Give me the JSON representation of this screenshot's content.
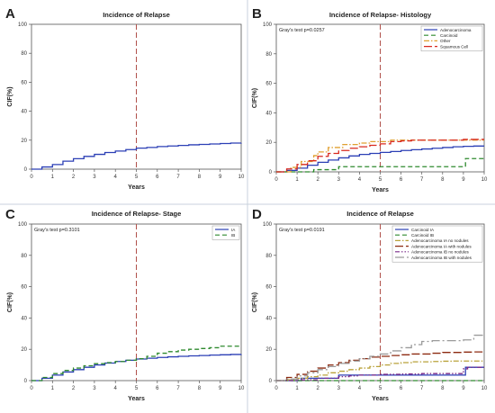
{
  "panel_letters": [
    "A",
    "B",
    "C",
    "D"
  ],
  "colors": {
    "blue": "#2b3fb5",
    "green": "#2e8a2e",
    "orange": "#e0a030",
    "red": "#d8281e",
    "darkred": "#8c2a10",
    "purple": "#7a2a8a",
    "gray": "#9a9a9a",
    "olive": "#b9a23a",
    "refline": "#b0504a",
    "divider": "#c8d2dc"
  },
  "chart_data": [
    {
      "type": "line",
      "panel": "A",
      "title": "Incidence of Relapse",
      "annotation": "",
      "xlabel": "Years",
      "ylabel": "CIF(%)",
      "xlim": [
        0,
        10
      ],
      "ylim": [
        0,
        100
      ],
      "xticks": [
        "0",
        "1",
        "2",
        "3",
        "4",
        "5",
        "6",
        "7",
        "8",
        "9",
        "10"
      ],
      "yticks": [
        "0",
        "20",
        "40",
        "60",
        "80",
        "100"
      ],
      "reference_line_x": 5,
      "grid": false,
      "legend": [],
      "series": [
        {
          "color_key": "blue",
          "dash": "solid",
          "x": [
            0,
            0.5,
            1,
            1.5,
            2,
            2.5,
            3,
            3.5,
            4,
            4.5,
            5,
            5.5,
            6,
            6.5,
            7,
            7.5,
            8,
            8.5,
            9,
            9.5,
            10
          ],
          "y": [
            0,
            1.5,
            3.2,
            5.5,
            7.2,
            8.8,
            10.2,
            11.5,
            12.5,
            13.5,
            14.5,
            15.0,
            15.6,
            16.0,
            16.4,
            16.8,
            17.1,
            17.4,
            17.7,
            18.0,
            18.1
          ]
        }
      ]
    },
    {
      "type": "line",
      "panel": "B",
      "title": "Incidence of Relapse- Histology",
      "annotation": "Gray's test p=0.0257",
      "xlabel": "Years",
      "ylabel": "CIF(%)",
      "xlim": [
        0,
        10
      ],
      "ylim": [
        0,
        100
      ],
      "xticks": [
        "0",
        "1",
        "2",
        "3",
        "4",
        "5",
        "6",
        "7",
        "8",
        "9",
        "10"
      ],
      "yticks": [
        "0",
        "20",
        "40",
        "60",
        "80",
        "100"
      ],
      "reference_line_x": 5,
      "grid": false,
      "legend": [
        "Adenocarcinoma",
        "Carcinoid",
        "Other",
        "Squamous Cell"
      ],
      "legend_colors": [
        "blue",
        "green",
        "orange",
        "red"
      ],
      "legend_dashes": [
        "solid",
        "dash",
        "dashdot",
        "longdash"
      ],
      "series": [
        {
          "name": "Adenocarcinoma",
          "color_key": "blue",
          "dash": "solid",
          "x": [
            0,
            0.5,
            1,
            1.5,
            2,
            2.5,
            3,
            3.5,
            4,
            4.5,
            5,
            5.5,
            6,
            6.5,
            7,
            7.5,
            8,
            8.5,
            9,
            9.5,
            10
          ],
          "y": [
            0,
            1,
            2.5,
            4.5,
            6.5,
            8,
            9.5,
            10.8,
            11.8,
            12.5,
            13.2,
            13.8,
            14.5,
            15,
            15.5,
            16,
            16.5,
            17,
            17.3,
            17.5,
            17.5
          ]
        },
        {
          "name": "Carcinoid",
          "color_key": "green",
          "dash": "dash",
          "x": [
            0,
            1,
            1.8,
            2.8,
            3.0,
            9.0,
            9.1,
            10
          ],
          "y": [
            0,
            0,
            1.5,
            1.5,
            3.5,
            3.5,
            9,
            9
          ]
        },
        {
          "name": "Other",
          "color_key": "orange",
          "dash": "dashdot",
          "x": [
            0,
            0.7,
            1.2,
            1.8,
            2.0,
            2.5,
            3.2,
            4.0,
            4.5,
            5.5,
            10
          ],
          "y": [
            0,
            3,
            7,
            11,
            13.5,
            16.5,
            18.5,
            19.5,
            20.5,
            21.5,
            21.5
          ]
        },
        {
          "name": "Squamous Cell",
          "color_key": "red",
          "dash": "longdash",
          "x": [
            0,
            0.5,
            1,
            1.5,
            2,
            2.5,
            3,
            3.5,
            4,
            4.5,
            5,
            5.5,
            6,
            6.5,
            7,
            7.5,
            8,
            8.5,
            9,
            9.5,
            10
          ],
          "y": [
            0,
            2,
            5,
            7.5,
            10.5,
            12.5,
            14.5,
            16,
            17,
            18,
            19,
            20.5,
            21,
            21.5,
            21.5,
            21.5,
            21.5,
            21.5,
            22,
            22,
            22
          ]
        }
      ]
    },
    {
      "type": "line",
      "panel": "C",
      "title": "Incidence of Relapse- Stage",
      "annotation": "Gray's test p=0.3101",
      "xlabel": "Years",
      "ylabel": "CIF(%)",
      "xlim": [
        0,
        10
      ],
      "ylim": [
        0,
        100
      ],
      "xticks": [
        "0",
        "1",
        "2",
        "3",
        "4",
        "5",
        "6",
        "7",
        "8",
        "9",
        "10"
      ],
      "yticks": [
        "0",
        "20",
        "40",
        "60",
        "80",
        "100"
      ],
      "reference_line_x": 5,
      "grid": false,
      "legend": [
        "IA",
        "IB"
      ],
      "legend_colors": [
        "blue",
        "green"
      ],
      "legend_dashes": [
        "solid",
        "dash"
      ],
      "series": [
        {
          "name": "IA",
          "color_key": "blue",
          "dash": "solid",
          "x": [
            0,
            0.5,
            1,
            1.5,
            2,
            2.5,
            3,
            3.5,
            4,
            4.5,
            5,
            5.5,
            6,
            6.5,
            7,
            7.5,
            8,
            8.5,
            9,
            9.5,
            10
          ],
          "y": [
            0,
            1.5,
            3.5,
            5.5,
            7,
            8.5,
            10,
            11.2,
            12.2,
            13,
            13.8,
            14.3,
            14.8,
            15.2,
            15.5,
            15.8,
            16,
            16.3,
            16.5,
            16.7,
            16.8
          ]
        },
        {
          "name": "IB",
          "color_key": "green",
          "dash": "dash",
          "x": [
            0,
            0.5,
            1,
            1.5,
            2,
            2.5,
            3,
            3.5,
            4,
            4.5,
            5,
            5.5,
            6,
            6.5,
            7,
            7.5,
            8,
            8.5,
            9,
            9.5,
            10
          ],
          "y": [
            0,
            2,
            4.5,
            6.5,
            8,
            9.5,
            10.8,
            11.5,
            12.2,
            13,
            14,
            15.5,
            17.5,
            18.5,
            19.5,
            20,
            20.5,
            21,
            22,
            22,
            22
          ]
        }
      ]
    },
    {
      "type": "line",
      "panel": "D",
      "title": "Incidence of Relapse",
      "annotation": "Gray's test p=0.0191",
      "xlabel": "Years",
      "ylabel": "CIF(%)",
      "xlim": [
        0,
        10
      ],
      "ylim": [
        0,
        100
      ],
      "xticks": [
        "0",
        "1",
        "2",
        "3",
        "4",
        "5",
        "6",
        "7",
        "8",
        "9",
        "10"
      ],
      "yticks": [
        "0",
        "20",
        "40",
        "60",
        "80",
        "100"
      ],
      "reference_line_x": 5,
      "grid": false,
      "legend": [
        "Carcinoid IA",
        "Carcinoid IB",
        "Adenocarcinoma IA no nodules",
        "Adenocarcinoma IA with nodules",
        "Adenocarcinoma IB no nodules",
        "Adenocarcinoma IB with nodules"
      ],
      "legend_colors": [
        "blue",
        "green",
        "olive",
        "darkred",
        "purple",
        "gray"
      ],
      "legend_dashes": [
        "solid",
        "dash",
        "dashdot",
        "longdash",
        "dashdotdot",
        "longdashdot"
      ],
      "series": [
        {
          "name": "Carcinoid IA",
          "color_key": "blue",
          "dash": "solid",
          "x": [
            0,
            0.8,
            1.2,
            2.8,
            3.0,
            9.0,
            9.1,
            10
          ],
          "y": [
            0,
            0,
            1.5,
            1.5,
            3.5,
            3.5,
            8.5,
            8.5
          ]
        },
        {
          "name": "Carcinoid IB",
          "color_key": "green",
          "dash": "dash",
          "x": [
            0,
            10
          ],
          "y": [
            0,
            0
          ]
        },
        {
          "name": "Adenocarcinoma IA no nodules",
          "color_key": "olive",
          "dash": "dashdot",
          "x": [
            0,
            0.5,
            1,
            1.5,
            2,
            2.5,
            3,
            3.5,
            4,
            4.5,
            5,
            5.5,
            6,
            6.5,
            7,
            7.5,
            8,
            8.5,
            9,
            9.5,
            10
          ],
          "y": [
            0,
            0.5,
            1.5,
            2.5,
            3.5,
            5,
            6,
            7,
            8,
            9,
            10,
            11,
            11.5,
            12,
            12,
            12.2,
            12.4,
            12.5,
            12.5,
            12.5,
            12.5
          ]
        },
        {
          "name": "Adenocarcinoma IA with nodules",
          "color_key": "darkred",
          "dash": "longdash",
          "x": [
            0,
            0.5,
            1,
            1.5,
            2,
            2.5,
            3,
            3.5,
            4,
            4.5,
            5,
            5.5,
            6,
            6.5,
            7,
            7.5,
            8,
            8.5,
            9,
            9.5,
            10
          ],
          "y": [
            0,
            2,
            4,
            6,
            8,
            10,
            11.5,
            13,
            14,
            15,
            15.5,
            16,
            16.5,
            17,
            17,
            17.5,
            18,
            18,
            18.2,
            18.3,
            18.3
          ]
        },
        {
          "name": "Adenocarcinoma IB no nodules",
          "color_key": "purple",
          "dash": "dashdotdot",
          "x": [
            0,
            1,
            2,
            3,
            3.5,
            4,
            5,
            6,
            7,
            8,
            8.8,
            9.0,
            9.2,
            10
          ],
          "y": [
            0,
            0.5,
            1.5,
            2.5,
            3.0,
            3.5,
            4.0,
            4.2,
            4.5,
            4.5,
            4.5,
            7.5,
            8.5,
            8.5
          ]
        },
        {
          "name": "Adenocarcinoma IB with nodules",
          "color_key": "gray",
          "dash": "longdashdot",
          "x": [
            0,
            0.5,
            1,
            1.5,
            2,
            2.5,
            3,
            3.5,
            4,
            4.5,
            5,
            5.5,
            6,
            6.5,
            7,
            7.5,
            8,
            8.5,
            9,
            9.5,
            10
          ],
          "y": [
            0,
            1,
            3,
            5,
            7,
            9,
            11,
            12.5,
            14,
            15.5,
            17,
            19,
            21,
            23,
            25,
            25.5,
            25.5,
            25.5,
            26,
            29,
            29
          ]
        }
      ]
    }
  ]
}
